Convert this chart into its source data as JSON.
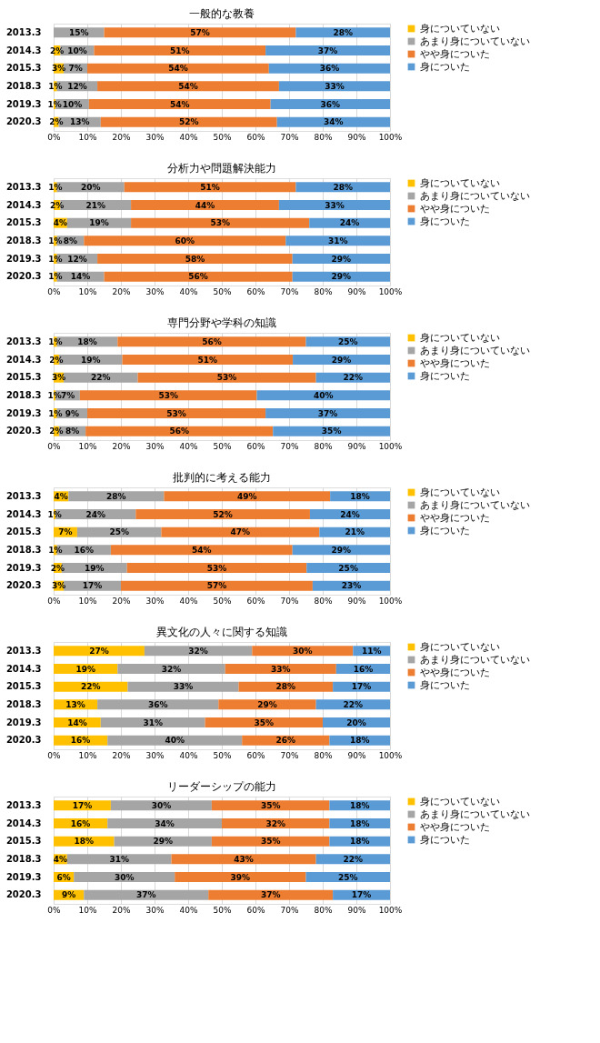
{
  "chart_data": [
    {
      "type": "bar",
      "orientation": "horizontal",
      "stacked": true,
      "title": "一般的な教養",
      "categories": [
        "2013.3",
        "2014.3",
        "2015.3",
        "2018.3",
        "2019.3",
        "2020.3"
      ],
      "xlim": [
        0,
        100
      ],
      "xticks": [
        {
          "value": 0,
          "label": "0%"
        },
        {
          "value": 10,
          "label": "10%"
        },
        {
          "value": 20,
          "label": "20%"
        },
        {
          "value": 30,
          "label": "30%"
        },
        {
          "value": 40,
          "label": "40%"
        },
        {
          "value": 50,
          "label": "50%"
        },
        {
          "value": 60,
          "label": "60%"
        },
        {
          "value": 70,
          "label": "70%"
        },
        {
          "value": 80,
          "label": "80%"
        },
        {
          "value": 90,
          "label": "90%"
        },
        {
          "value": 100,
          "label": "100%"
        }
      ],
      "grid": "x",
      "legend": "right",
      "series": [
        {
          "name": "身についていない",
          "color": "#ffc000",
          "values": [
            null,
            2,
            3,
            1,
            0.6,
            1.5
          ],
          "value_labels": [
            null,
            "2%",
            "3%",
            "1%",
            "1%",
            "2%"
          ]
        },
        {
          "name": "あまり身についていない",
          "color": "#a5a5a5",
          "values": [
            15,
            10,
            7,
            12,
            9.9,
            12.5
          ],
          "value_labels": [
            "15%",
            "10%",
            "7%",
            "12%",
            "10%",
            "13%"
          ]
        },
        {
          "name": "やや身についた",
          "color": "#ed7d31",
          "values": [
            57,
            51,
            54,
            54,
            54,
            52.4
          ],
          "value_labels": [
            "57%",
            "51%",
            "54%",
            "54%",
            "54%",
            "52%"
          ]
        },
        {
          "name": "身についた",
          "color": "#5b9bd5",
          "values": [
            28,
            37,
            36,
            33,
            35.5,
            33.6
          ],
          "value_labels": [
            "28%",
            "37%",
            "36%",
            "33%",
            "36%",
            "34%"
          ]
        }
      ]
    },
    {
      "type": "bar",
      "orientation": "horizontal",
      "stacked": true,
      "title": "分析力や問題解決能力",
      "categories": [
        "2013.3",
        "2014.3",
        "2015.3",
        "2018.3",
        "2019.3",
        "2020.3"
      ],
      "xlim": [
        0,
        100
      ],
      "xticks": [
        {
          "value": 0,
          "label": "0%"
        },
        {
          "value": 10,
          "label": "10%"
        },
        {
          "value": 20,
          "label": "20%"
        },
        {
          "value": 30,
          "label": "30%"
        },
        {
          "value": 40,
          "label": "40%"
        },
        {
          "value": 50,
          "label": "50%"
        },
        {
          "value": 60,
          "label": "60%"
        },
        {
          "value": 70,
          "label": "70%"
        },
        {
          "value": 80,
          "label": "80%"
        },
        {
          "value": 90,
          "label": "90%"
        },
        {
          "value": 100,
          "label": "100%"
        }
      ],
      "grid": "x",
      "legend": "right",
      "series": [
        {
          "name": "身についていない",
          "color": "#ffc000",
          "values": [
            1,
            2,
            4,
            1,
            1,
            1
          ],
          "value_labels": [
            "1%",
            "2%",
            "4%",
            "1%",
            "1%",
            "1%"
          ]
        },
        {
          "name": "あまり身についていない",
          "color": "#a5a5a5",
          "values": [
            20,
            21,
            19,
            8,
            12,
            14
          ],
          "value_labels": [
            "20%",
            "21%",
            "19%",
            "8%",
            "12%",
            "14%"
          ]
        },
        {
          "name": "やや身についた",
          "color": "#ed7d31",
          "values": [
            51,
            44,
            53,
            60,
            58,
            56
          ],
          "value_labels": [
            "51%",
            "44%",
            "53%",
            "60%",
            "58%",
            "56%"
          ]
        },
        {
          "name": "身についた",
          "color": "#5b9bd5",
          "values": [
            28,
            33,
            24,
            31,
            29,
            29
          ],
          "value_labels": [
            "28%",
            "33%",
            "24%",
            "31%",
            "29%",
            "29%"
          ]
        }
      ]
    },
    {
      "type": "bar",
      "orientation": "horizontal",
      "stacked": true,
      "title": "専門分野や学科の知識",
      "categories": [
        "2013.3",
        "2014.3",
        "2015.3",
        "2018.3",
        "2019.3",
        "2020.3"
      ],
      "xlim": [
        0,
        100
      ],
      "xticks": [
        {
          "value": 0,
          "label": "0%"
        },
        {
          "value": 10,
          "label": "10%"
        },
        {
          "value": 20,
          "label": "20%"
        },
        {
          "value": 30,
          "label": "30%"
        },
        {
          "value": 40,
          "label": "40%"
        },
        {
          "value": 50,
          "label": "50%"
        },
        {
          "value": 60,
          "label": "60%"
        },
        {
          "value": 70,
          "label": "70%"
        },
        {
          "value": 80,
          "label": "80%"
        },
        {
          "value": 90,
          "label": "90%"
        },
        {
          "value": 100,
          "label": "100%"
        }
      ],
      "grid": "x",
      "legend": "right",
      "series": [
        {
          "name": "身についていない",
          "color": "#ffc000",
          "values": [
            1,
            1.6,
            3,
            0.6,
            1,
            1.6
          ],
          "value_labels": [
            "1%",
            "2%",
            "3%",
            "1%",
            "1%",
            "2%"
          ]
        },
        {
          "name": "あまり身についていない",
          "color": "#a5a5a5",
          "values": [
            18,
            18.8,
            22,
            7.2,
            9,
            7.9
          ],
          "value_labels": [
            "18%",
            "19%",
            "22%",
            "7%",
            "9%",
            "8%"
          ]
        },
        {
          "name": "やや身についた",
          "color": "#ed7d31",
          "values": [
            56,
            50.7,
            53,
            52.6,
            53,
            55.7
          ],
          "value_labels": [
            "56%",
            "51%",
            "53%",
            "53%",
            "53%",
            "56%"
          ]
        },
        {
          "name": "身についた",
          "color": "#5b9bd5",
          "values": [
            25,
            28.9,
            22,
            39.6,
            37,
            34.8
          ],
          "value_labels": [
            "25%",
            "29%",
            "22%",
            "40%",
            "37%",
            "35%"
          ]
        }
      ]
    },
    {
      "type": "bar",
      "orientation": "horizontal",
      "stacked": true,
      "title": "批判的に考える能力",
      "categories": [
        "2013.3",
        "2014.3",
        "2015.3",
        "2018.3",
        "2019.3",
        "2020.3"
      ],
      "xlim": [
        0,
        100
      ],
      "xticks": [
        {
          "value": 0,
          "label": "0%"
        },
        {
          "value": 10,
          "label": "10%"
        },
        {
          "value": 20,
          "label": "20%"
        },
        {
          "value": 30,
          "label": "30%"
        },
        {
          "value": 40,
          "label": "40%"
        },
        {
          "value": 50,
          "label": "50%"
        },
        {
          "value": 60,
          "label": "60%"
        },
        {
          "value": 70,
          "label": "70%"
        },
        {
          "value": 80,
          "label": "80%"
        },
        {
          "value": 90,
          "label": "90%"
        },
        {
          "value": 100,
          "label": "100%"
        }
      ],
      "grid": "x",
      "legend": "right",
      "series": [
        {
          "name": "身についていない",
          "color": "#ffc000",
          "values": [
            4.4,
            0.6,
            7,
            1,
            2.4,
            3
          ],
          "value_labels": [
            "4%",
            "1%",
            "7%",
            "1%",
            "2%",
            "3%"
          ]
        },
        {
          "name": "あまり身についていない",
          "color": "#a5a5a5",
          "values": [
            28.4,
            23.8,
            25,
            16,
            19.4,
            17
          ],
          "value_labels": [
            "28%",
            "24%",
            "25%",
            "16%",
            "19%",
            "17%"
          ]
        },
        {
          "name": "やや身についた",
          "color": "#ed7d31",
          "values": [
            49.4,
            51.8,
            47,
            54,
            53.4,
            57
          ],
          "value_labels": [
            "49%",
            "52%",
            "47%",
            "54%",
            "53%",
            "57%"
          ]
        },
        {
          "name": "身についた",
          "color": "#5b9bd5",
          "values": [
            17.8,
            23.8,
            21,
            29,
            24.8,
            23
          ],
          "value_labels": [
            "18%",
            "24%",
            "21%",
            "29%",
            "25%",
            "23%"
          ]
        }
      ]
    },
    {
      "type": "bar",
      "orientation": "horizontal",
      "stacked": true,
      "title": "異文化の人々に関する知識",
      "categories": [
        "2013.3",
        "2014.3",
        "2015.3",
        "2018.3",
        "2019.3",
        "2020.3"
      ],
      "xlim": [
        0,
        100
      ],
      "xticks": [
        {
          "value": 0,
          "label": "0%"
        },
        {
          "value": 10,
          "label": "10%"
        },
        {
          "value": 20,
          "label": "20%"
        },
        {
          "value": 30,
          "label": "30%"
        },
        {
          "value": 40,
          "label": "40%"
        },
        {
          "value": 50,
          "label": "50%"
        },
        {
          "value": 60,
          "label": "60%"
        },
        {
          "value": 70,
          "label": "70%"
        },
        {
          "value": 80,
          "label": "80%"
        },
        {
          "value": 90,
          "label": "90%"
        },
        {
          "value": 100,
          "label": "100%"
        }
      ],
      "grid": "x",
      "legend": "right",
      "series": [
        {
          "name": "身についていない",
          "color": "#ffc000",
          "values": [
            27,
            19,
            22,
            13,
            14,
            16
          ],
          "value_labels": [
            "27%",
            "19%",
            "22%",
            "13%",
            "14%",
            "16%"
          ]
        },
        {
          "name": "あまり身についていない",
          "color": "#a5a5a5",
          "values": [
            32,
            32,
            33,
            36,
            31,
            40
          ],
          "value_labels": [
            "32%",
            "32%",
            "33%",
            "36%",
            "31%",
            "40%"
          ]
        },
        {
          "name": "やや身についた",
          "color": "#ed7d31",
          "values": [
            30,
            33,
            28,
            29,
            35,
            26
          ],
          "value_labels": [
            "30%",
            "33%",
            "28%",
            "29%",
            "35%",
            "26%"
          ]
        },
        {
          "name": "身についた",
          "color": "#5b9bd5",
          "values": [
            11,
            16,
            17,
            22,
            20,
            18
          ],
          "value_labels": [
            "11%",
            "16%",
            "17%",
            "22%",
            "20%",
            "18%"
          ]
        }
      ]
    },
    {
      "type": "bar",
      "orientation": "horizontal",
      "stacked": true,
      "title": "リーダーシップの能力",
      "categories": [
        "2013.3",
        "2014.3",
        "2015.3",
        "2018.3",
        "2019.3",
        "2020.3"
      ],
      "xlim": [
        0,
        100
      ],
      "xticks": [
        {
          "value": 0,
          "label": "0%"
        },
        {
          "value": 10,
          "label": "10%"
        },
        {
          "value": 20,
          "label": "20%"
        },
        {
          "value": 30,
          "label": "30%"
        },
        {
          "value": 40,
          "label": "40%"
        },
        {
          "value": 50,
          "label": "50%"
        },
        {
          "value": 60,
          "label": "60%"
        },
        {
          "value": 70,
          "label": "70%"
        },
        {
          "value": 80,
          "label": "80%"
        },
        {
          "value": 90,
          "label": "90%"
        },
        {
          "value": 100,
          "label": "100%"
        }
      ],
      "grid": "x",
      "legend": "right",
      "series": [
        {
          "name": "身についていない",
          "color": "#ffc000",
          "values": [
            17,
            16,
            18,
            4,
            6,
            9
          ],
          "value_labels": [
            "17%",
            "16%",
            "18%",
            "4%",
            "6%",
            "9%"
          ]
        },
        {
          "name": "あまり身についていない",
          "color": "#a5a5a5",
          "values": [
            30,
            34,
            29,
            31,
            30,
            37
          ],
          "value_labels": [
            "30%",
            "34%",
            "29%",
            "31%",
            "30%",
            "37%"
          ]
        },
        {
          "name": "やや身についた",
          "color": "#ed7d31",
          "values": [
            35,
            32,
            35,
            43,
            39,
            37
          ],
          "value_labels": [
            "35%",
            "32%",
            "35%",
            "43%",
            "39%",
            "37%"
          ]
        },
        {
          "name": "身についた",
          "color": "#5b9bd5",
          "values": [
            18,
            18,
            18,
            22,
            25,
            17
          ],
          "value_labels": [
            "18%",
            "18%",
            "18%",
            "22%",
            "25%",
            "17%"
          ]
        }
      ]
    }
  ]
}
